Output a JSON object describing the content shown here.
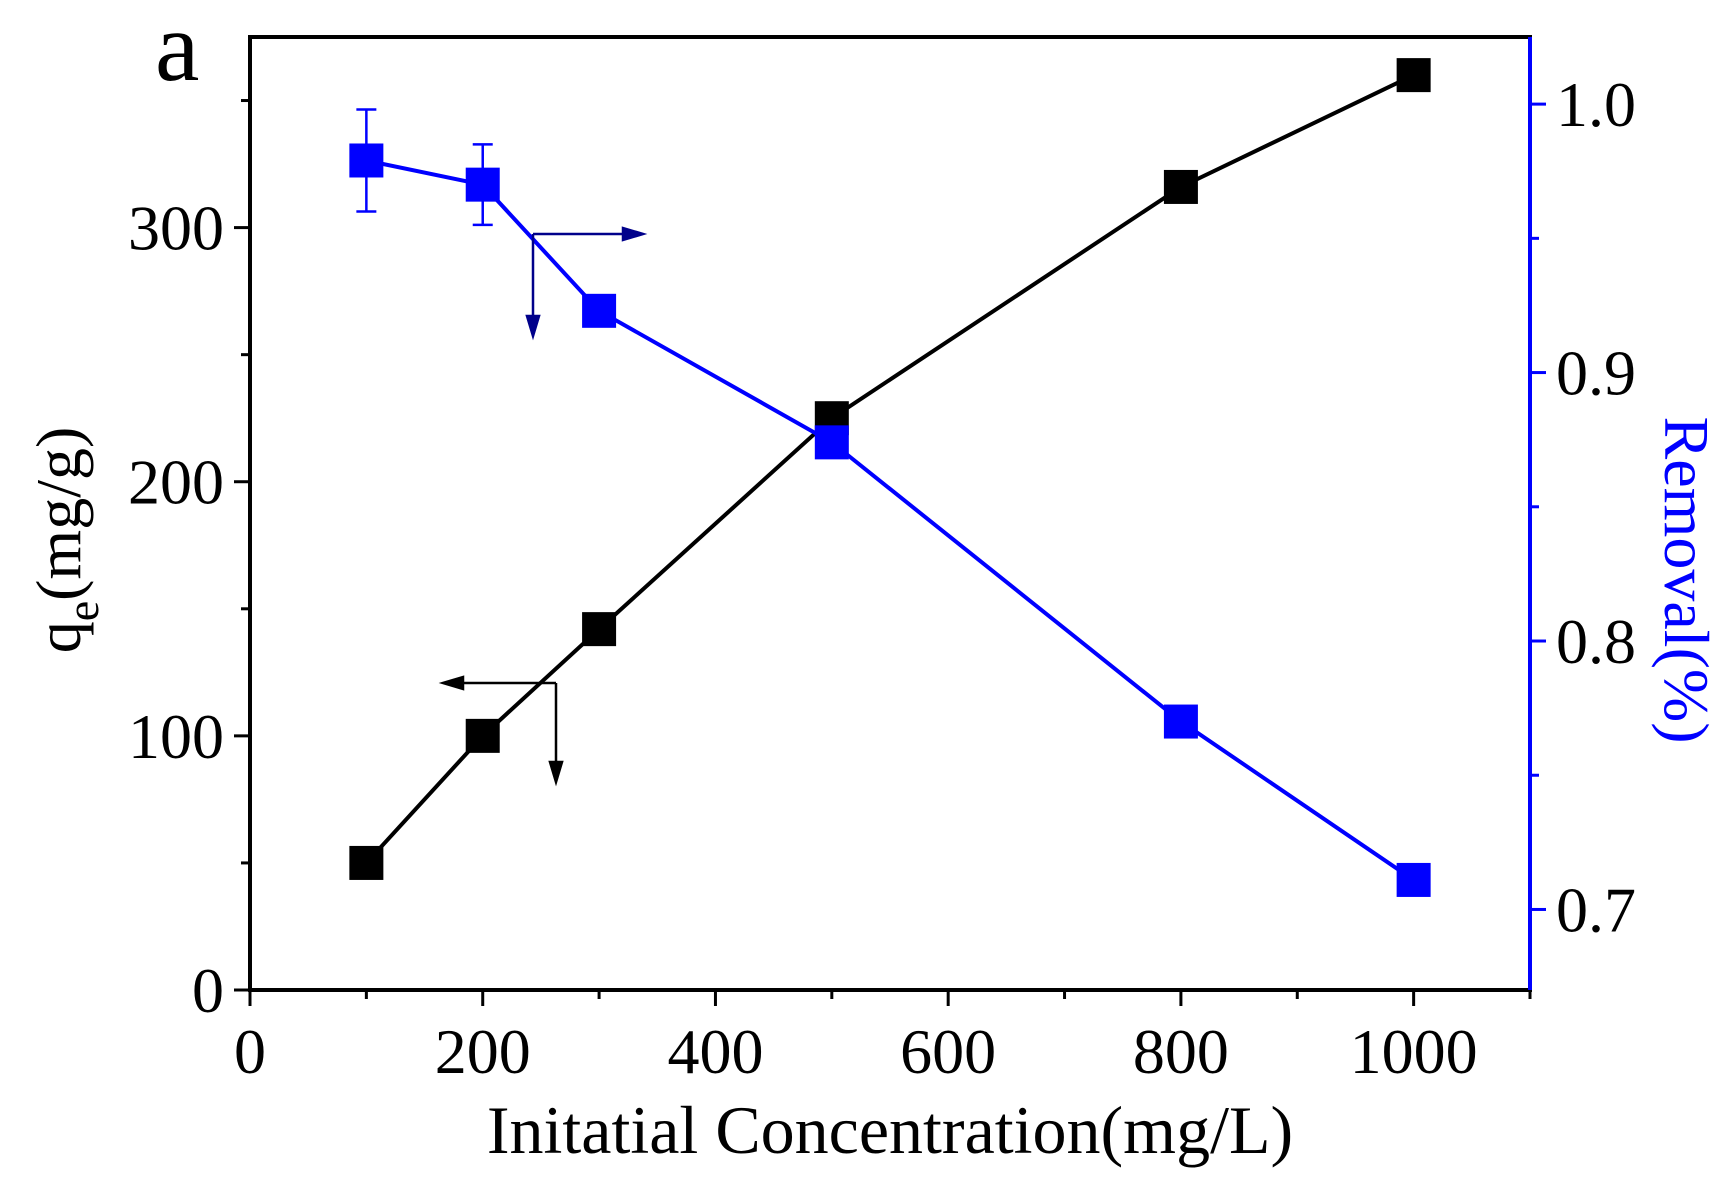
{
  "panel_label": "a",
  "chart_data": {
    "type": "line",
    "xlabel": "Initatial Concentration(mg/L)",
    "ylabel_main": "q",
    "ylabel_sub": "e",
    "ylabel_rest": "(mg/g)",
    "y2label": "Removal(%)",
    "xlim": [
      0,
      1100
    ],
    "ylim": [
      0,
      375
    ],
    "y2lim": [
      0.67,
      1.025
    ],
    "xticks": [
      0,
      200,
      400,
      600,
      800,
      1000
    ],
    "xticks_minor": [
      100,
      300,
      500,
      700,
      900,
      1100
    ],
    "yticks": [
      0,
      100,
      200,
      300
    ],
    "yticks_minor": [
      50,
      150,
      250,
      350
    ],
    "y2ticks": [
      "0.7",
      "0.8",
      "0.9",
      "1.0"
    ],
    "y2ticks_minor": [
      0.75,
      0.85,
      0.95
    ],
    "colors": {
      "primary": "#000000",
      "secondary": "#0000ff",
      "arrow_blue": "#00008b"
    },
    "series": [
      {
        "name": "qe",
        "axis": "left",
        "color": "#000000",
        "x": [
          100,
          200,
          300,
          500,
          800,
          1000
        ],
        "values": [
          50,
          100,
          142,
          225,
          316,
          360
        ]
      },
      {
        "name": "Removal",
        "axis": "right",
        "color": "#0000ff",
        "x": [
          100,
          200,
          300,
          500,
          800,
          1000
        ],
        "values": [
          0.979,
          0.97,
          0.923,
          0.874,
          0.77,
          0.711
        ],
        "errors": [
          0.019,
          0.015,
          null,
          null,
          null,
          null
        ]
      }
    ]
  }
}
